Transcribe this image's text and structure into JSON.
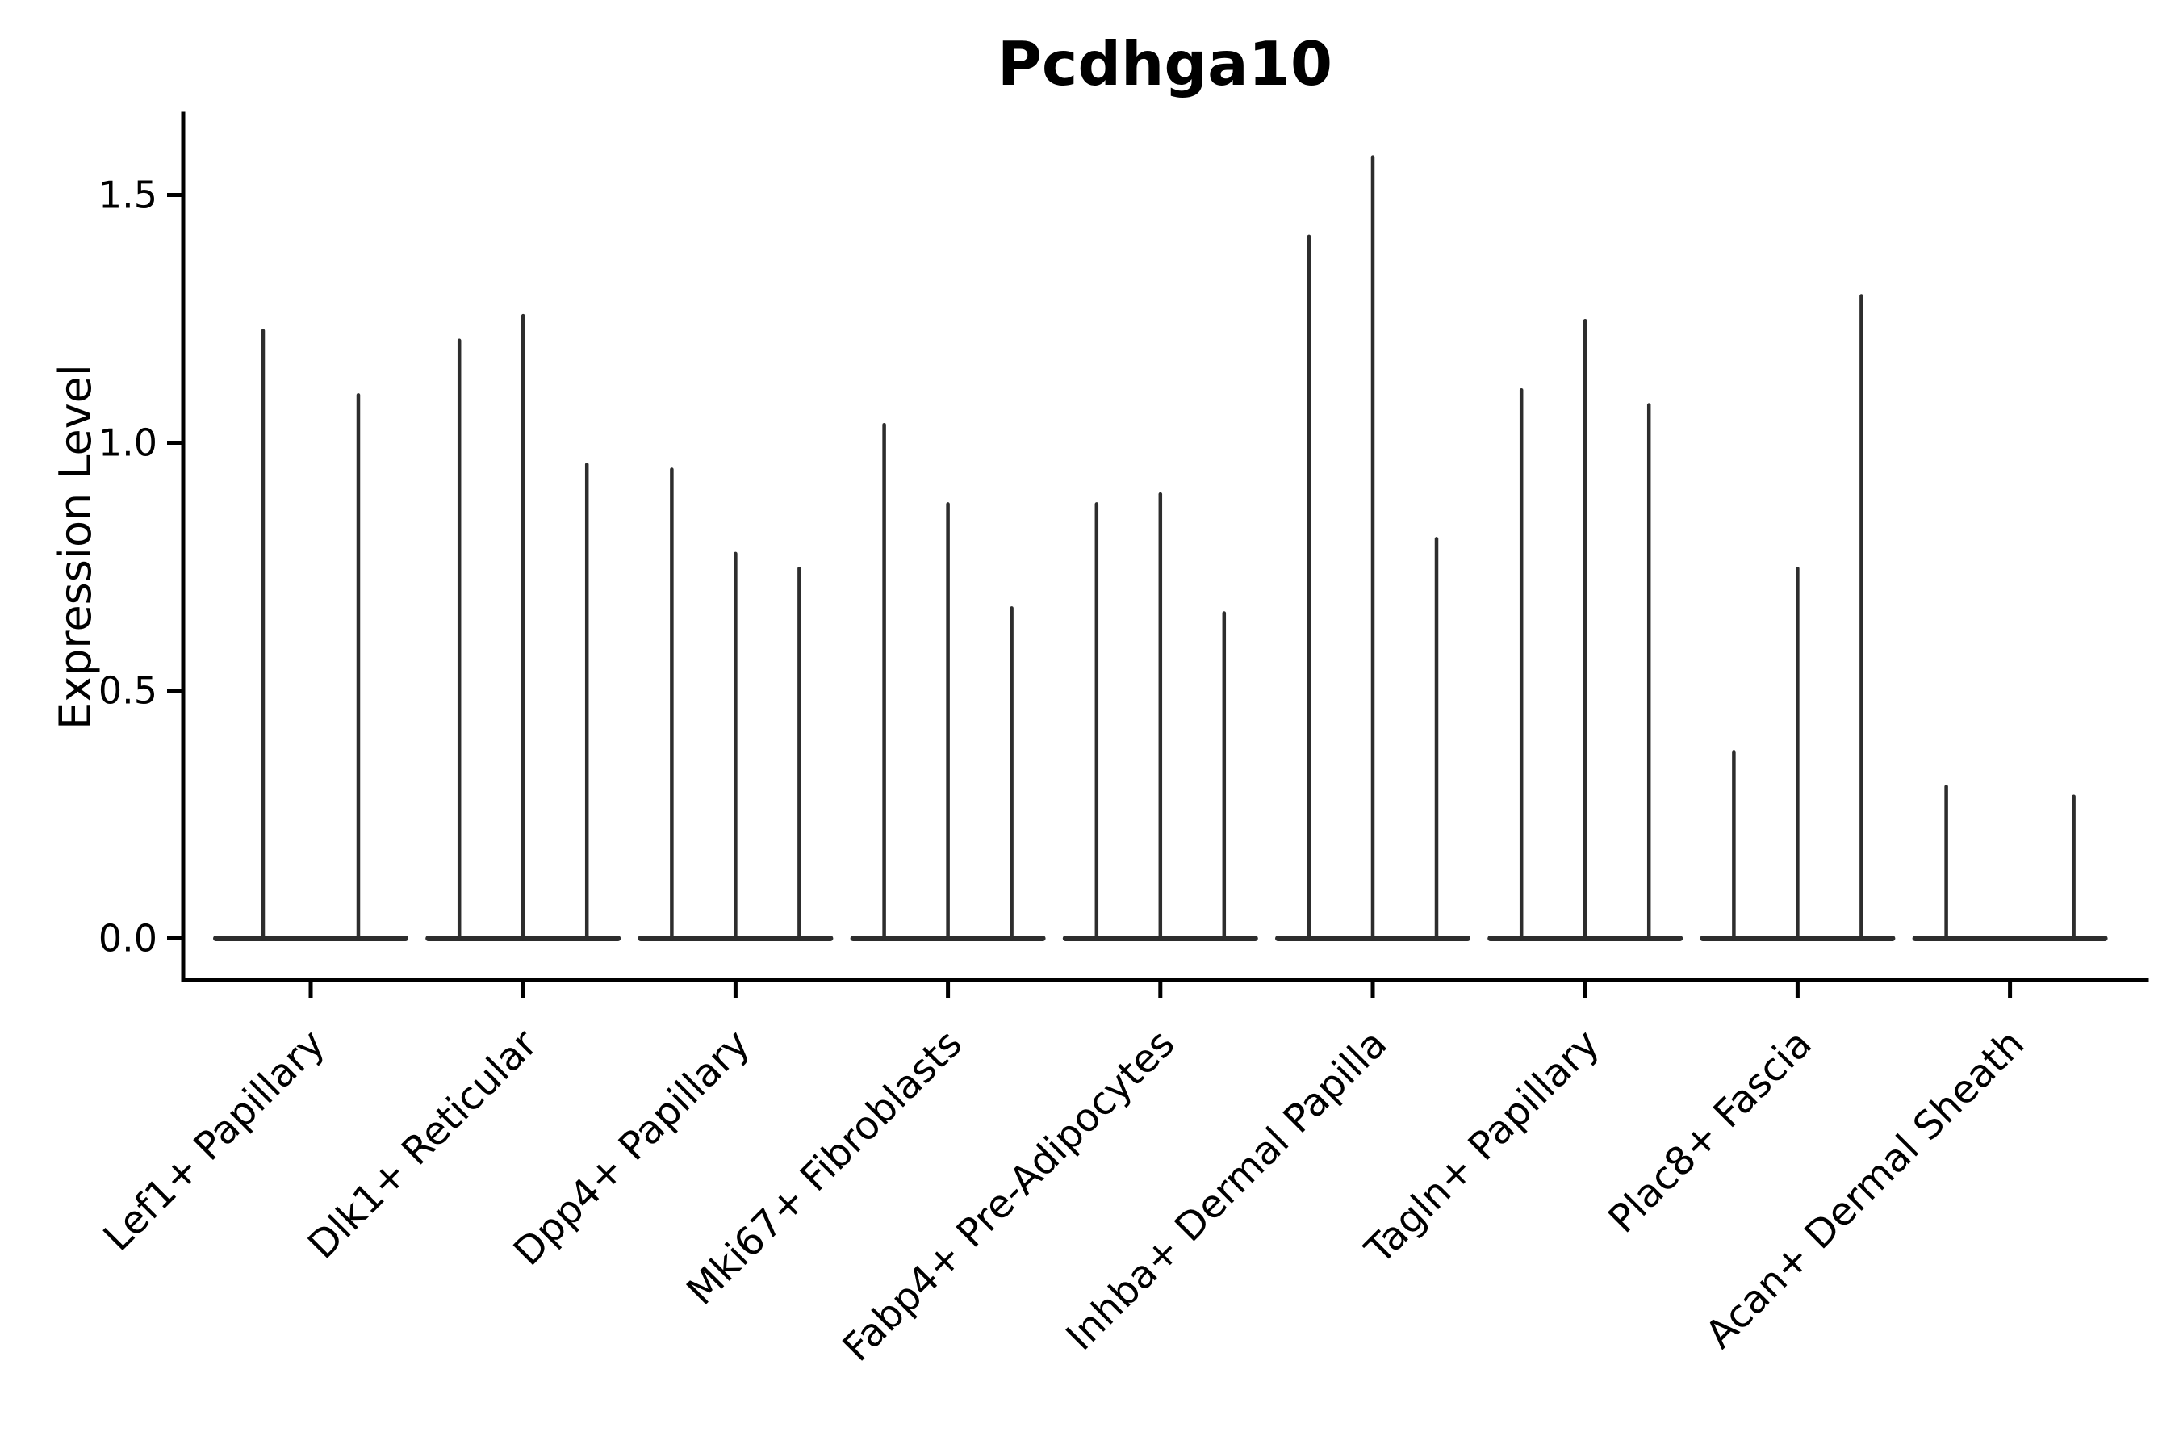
{
  "figure": {
    "background": "#ffffff"
  },
  "chart_data": {
    "type": "violin",
    "title": "Pcdhga10",
    "xlabel": "",
    "ylabel": "Expression Level",
    "ylim": [
      -0.084,
      1.664
    ],
    "ytick_values": [
      0.0,
      0.5,
      1.0,
      1.5
    ],
    "yticks": [
      "0.0",
      "0.5",
      "1.0",
      "1.5"
    ],
    "grid": false,
    "legend_position": "none",
    "style_note": "single-cell expression violin plot; violins are near-zero-width black spikes rising from a flat baseline at 0 for each group; only left and bottom axis spines drawn",
    "categories": [
      "Lef1+ Papillary",
      "Dlk1+ Reticular",
      "Dpp4+ Papillary",
      "Mki67+ Fibroblasts",
      "Fabp4+ Pre-Adipocytes",
      "Inhba+ Dermal Papilla",
      "Tagln+ Papillary",
      "Plac8+ Fascia",
      "Acan+ Dermal Sheath"
    ],
    "groups": [
      {
        "category": "Lef1+ Papillary",
        "violins": [
          {
            "offset": -59,
            "max": 1.23
          },
          {
            "offset": 59,
            "max": 1.1
          }
        ]
      },
      {
        "category": "Dlk1+ Reticular",
        "violins": [
          {
            "offset": -79,
            "max": 1.21
          },
          {
            "offset": 0,
            "max": 1.26
          },
          {
            "offset": 79,
            "max": 0.96
          }
        ]
      },
      {
        "category": "Dpp4+ Papillary",
        "violins": [
          {
            "offset": -79,
            "max": 0.95
          },
          {
            "offset": 0,
            "max": 0.78
          },
          {
            "offset": 79,
            "max": 0.75
          }
        ]
      },
      {
        "category": "Mki67+ Fibroblasts",
        "violins": [
          {
            "offset": -79,
            "max": 1.04
          },
          {
            "offset": 0,
            "max": 0.88
          },
          {
            "offset": 79,
            "max": 0.67
          }
        ]
      },
      {
        "category": "Fabp4+ Pre-Adipocytes",
        "violins": [
          {
            "offset": -79,
            "max": 0.88
          },
          {
            "offset": 0,
            "max": 0.9
          },
          {
            "offset": 79,
            "max": 0.66
          }
        ]
      },
      {
        "category": "Inhba+ Dermal Papilla",
        "violins": [
          {
            "offset": -79,
            "max": 1.42
          },
          {
            "offset": 0,
            "max": 1.58
          },
          {
            "offset": 79,
            "max": 0.81
          }
        ]
      },
      {
        "category": "Tagln+ Papillary",
        "violins": [
          {
            "offset": -79,
            "max": 1.11
          },
          {
            "offset": 0,
            "max": 1.25
          },
          {
            "offset": 79,
            "max": 1.08
          }
        ]
      },
      {
        "category": "Plac8+ Fascia",
        "violins": [
          {
            "offset": -79,
            "max": 0.38
          },
          {
            "offset": 0,
            "max": 0.75
          },
          {
            "offset": 79,
            "max": 1.3
          }
        ]
      },
      {
        "category": "Acan+ Dermal Sheath",
        "violins": [
          {
            "offset": -79,
            "max": 0.31
          },
          {
            "offset": 79,
            "max": 0.29
          }
        ]
      }
    ],
    "colors": {
      "violin": "#2d2d2d",
      "axis": "#000000",
      "text": "#000000",
      "background": "#ffffff"
    }
  }
}
